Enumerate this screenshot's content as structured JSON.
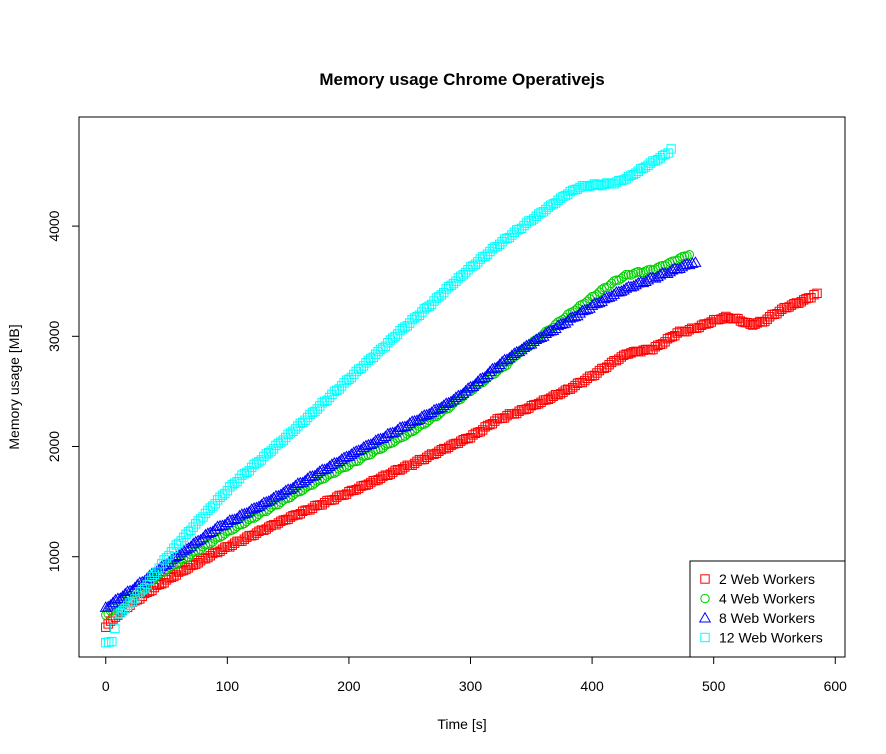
{
  "chart_data": {
    "type": "scatter",
    "title": "Memory usage Chrome Operativejs",
    "xlabel": "Time [s]",
    "ylabel": "Memory usage [MB]",
    "xlim": [
      -22,
      608
    ],
    "ylim": [
      90,
      4990
    ],
    "x_ticks": [
      0,
      100,
      200,
      300,
      400,
      500,
      600
    ],
    "y_ticks": [
      1000,
      2000,
      3000,
      4000
    ],
    "legend_position": "bottom-right",
    "series": [
      {
        "name": "2 Web Workers",
        "color": "#ff0000",
        "marker": "square",
        "points": [
          [
            0,
            360
          ],
          [
            10,
            470
          ],
          [
            20,
            560
          ],
          [
            30,
            640
          ],
          [
            40,
            720
          ],
          [
            50,
            790
          ],
          [
            60,
            860
          ],
          [
            70,
            920
          ],
          [
            80,
            980
          ],
          [
            90,
            1040
          ],
          [
            100,
            1090
          ],
          [
            110,
            1140
          ],
          [
            120,
            1190
          ],
          [
            130,
            1240
          ],
          [
            140,
            1290
          ],
          [
            150,
            1340
          ],
          [
            160,
            1390
          ],
          [
            170,
            1440
          ],
          [
            180,
            1490
          ],
          [
            190,
            1540
          ],
          [
            200,
            1590
          ],
          [
            210,
            1640
          ],
          [
            220,
            1690
          ],
          [
            230,
            1740
          ],
          [
            240,
            1790
          ],
          [
            250,
            1830
          ],
          [
            260,
            1880
          ],
          [
            270,
            1930
          ],
          [
            280,
            1980
          ],
          [
            290,
            2030
          ],
          [
            300,
            2080
          ],
          [
            310,
            2150
          ],
          [
            320,
            2230
          ],
          [
            330,
            2280
          ],
          [
            340,
            2320
          ],
          [
            350,
            2370
          ],
          [
            360,
            2420
          ],
          [
            370,
            2470
          ],
          [
            380,
            2520
          ],
          [
            390,
            2580
          ],
          [
            400,
            2640
          ],
          [
            410,
            2710
          ],
          [
            420,
            2780
          ],
          [
            430,
            2840
          ],
          [
            440,
            2860
          ],
          [
            450,
            2880
          ],
          [
            460,
            2950
          ],
          [
            470,
            3030
          ],
          [
            480,
            3060
          ],
          [
            490,
            3100
          ],
          [
            500,
            3150
          ],
          [
            510,
            3180
          ],
          [
            520,
            3160
          ],
          [
            530,
            3110
          ],
          [
            540,
            3130
          ],
          [
            550,
            3200
          ],
          [
            560,
            3260
          ],
          [
            570,
            3300
          ],
          [
            580,
            3350
          ],
          [
            585,
            3390
          ]
        ]
      },
      {
        "name": "4 Web Workers",
        "color": "#00cd00",
        "marker": "circle",
        "points": [
          [
            0,
            470
          ],
          [
            10,
            560
          ],
          [
            20,
            650
          ],
          [
            30,
            720
          ],
          [
            40,
            800
          ],
          [
            50,
            880
          ],
          [
            60,
            950
          ],
          [
            70,
            1020
          ],
          [
            80,
            1090
          ],
          [
            90,
            1160
          ],
          [
            100,
            1230
          ],
          [
            110,
            1290
          ],
          [
            120,
            1350
          ],
          [
            130,
            1410
          ],
          [
            140,
            1470
          ],
          [
            150,
            1530
          ],
          [
            160,
            1590
          ],
          [
            170,
            1650
          ],
          [
            180,
            1710
          ],
          [
            190,
            1770
          ],
          [
            200,
            1830
          ],
          [
            210,
            1890
          ],
          [
            220,
            1950
          ],
          [
            230,
            2010
          ],
          [
            240,
            2070
          ],
          [
            250,
            2130
          ],
          [
            260,
            2200
          ],
          [
            270,
            2270
          ],
          [
            280,
            2340
          ],
          [
            290,
            2420
          ],
          [
            300,
            2500
          ],
          [
            310,
            2580
          ],
          [
            320,
            2660
          ],
          [
            330,
            2740
          ],
          [
            340,
            2850
          ],
          [
            350,
            2930
          ],
          [
            360,
            3020
          ],
          [
            370,
            3110
          ],
          [
            380,
            3200
          ],
          [
            390,
            3280
          ],
          [
            400,
            3360
          ],
          [
            410,
            3440
          ],
          [
            420,
            3510
          ],
          [
            430,
            3560
          ],
          [
            440,
            3580
          ],
          [
            450,
            3600
          ],
          [
            460,
            3640
          ],
          [
            470,
            3690
          ],
          [
            480,
            3740
          ]
        ]
      },
      {
        "name": "8 Web Workers",
        "color": "#0000ff",
        "marker": "triangle",
        "points": [
          [
            0,
            540
          ],
          [
            10,
            620
          ],
          [
            20,
            690
          ],
          [
            30,
            770
          ],
          [
            40,
            850
          ],
          [
            50,
            930
          ],
          [
            60,
            1010
          ],
          [
            70,
            1090
          ],
          [
            80,
            1170
          ],
          [
            90,
            1250
          ],
          [
            100,
            1310
          ],
          [
            110,
            1370
          ],
          [
            120,
            1430
          ],
          [
            130,
            1490
          ],
          [
            140,
            1550
          ],
          [
            150,
            1610
          ],
          [
            160,
            1670
          ],
          [
            170,
            1730
          ],
          [
            180,
            1790
          ],
          [
            190,
            1850
          ],
          [
            200,
            1910
          ],
          [
            210,
            1970
          ],
          [
            220,
            2030
          ],
          [
            230,
            2090
          ],
          [
            240,
            2150
          ],
          [
            250,
            2210
          ],
          [
            260,
            2270
          ],
          [
            270,
            2330
          ],
          [
            280,
            2390
          ],
          [
            290,
            2460
          ],
          [
            300,
            2540
          ],
          [
            310,
            2620
          ],
          [
            320,
            2710
          ],
          [
            330,
            2790
          ],
          [
            340,
            2860
          ],
          [
            350,
            2930
          ],
          [
            360,
            3000
          ],
          [
            370,
            3070
          ],
          [
            380,
            3140
          ],
          [
            390,
            3210
          ],
          [
            400,
            3280
          ],
          [
            410,
            3340
          ],
          [
            420,
            3400
          ],
          [
            430,
            3450
          ],
          [
            440,
            3490
          ],
          [
            450,
            3530
          ],
          [
            460,
            3570
          ],
          [
            470,
            3610
          ],
          [
            480,
            3650
          ],
          [
            485,
            3670
          ]
        ]
      },
      {
        "name": "12 Web Workers",
        "color": "#00ffff",
        "marker": "square",
        "points": [
          [
            0,
            220
          ],
          [
            5,
            230
          ],
          [
            10,
            480
          ],
          [
            20,
            580
          ],
          [
            30,
            700
          ],
          [
            40,
            840
          ],
          [
            50,
            990
          ],
          [
            60,
            1120
          ],
          [
            70,
            1240
          ],
          [
            80,
            1360
          ],
          [
            90,
            1480
          ],
          [
            100,
            1600
          ],
          [
            110,
            1710
          ],
          [
            120,
            1810
          ],
          [
            130,
            1910
          ],
          [
            140,
            2010
          ],
          [
            150,
            2110
          ],
          [
            160,
            2210
          ],
          [
            170,
            2310
          ],
          [
            180,
            2410
          ],
          [
            190,
            2510
          ],
          [
            200,
            2610
          ],
          [
            210,
            2710
          ],
          [
            220,
            2810
          ],
          [
            230,
            2910
          ],
          [
            240,
            3020
          ],
          [
            250,
            3120
          ],
          [
            260,
            3220
          ],
          [
            270,
            3320
          ],
          [
            280,
            3430
          ],
          [
            290,
            3530
          ],
          [
            300,
            3630
          ],
          [
            310,
            3720
          ],
          [
            320,
            3810
          ],
          [
            330,
            3890
          ],
          [
            340,
            3970
          ],
          [
            350,
            4050
          ],
          [
            360,
            4130
          ],
          [
            370,
            4210
          ],
          [
            380,
            4290
          ],
          [
            390,
            4350
          ],
          [
            400,
            4370
          ],
          [
            410,
            4380
          ],
          [
            420,
            4400
          ],
          [
            430,
            4450
          ],
          [
            440,
            4520
          ],
          [
            450,
            4590
          ],
          [
            460,
            4650
          ],
          [
            465,
            4700
          ]
        ]
      }
    ]
  }
}
